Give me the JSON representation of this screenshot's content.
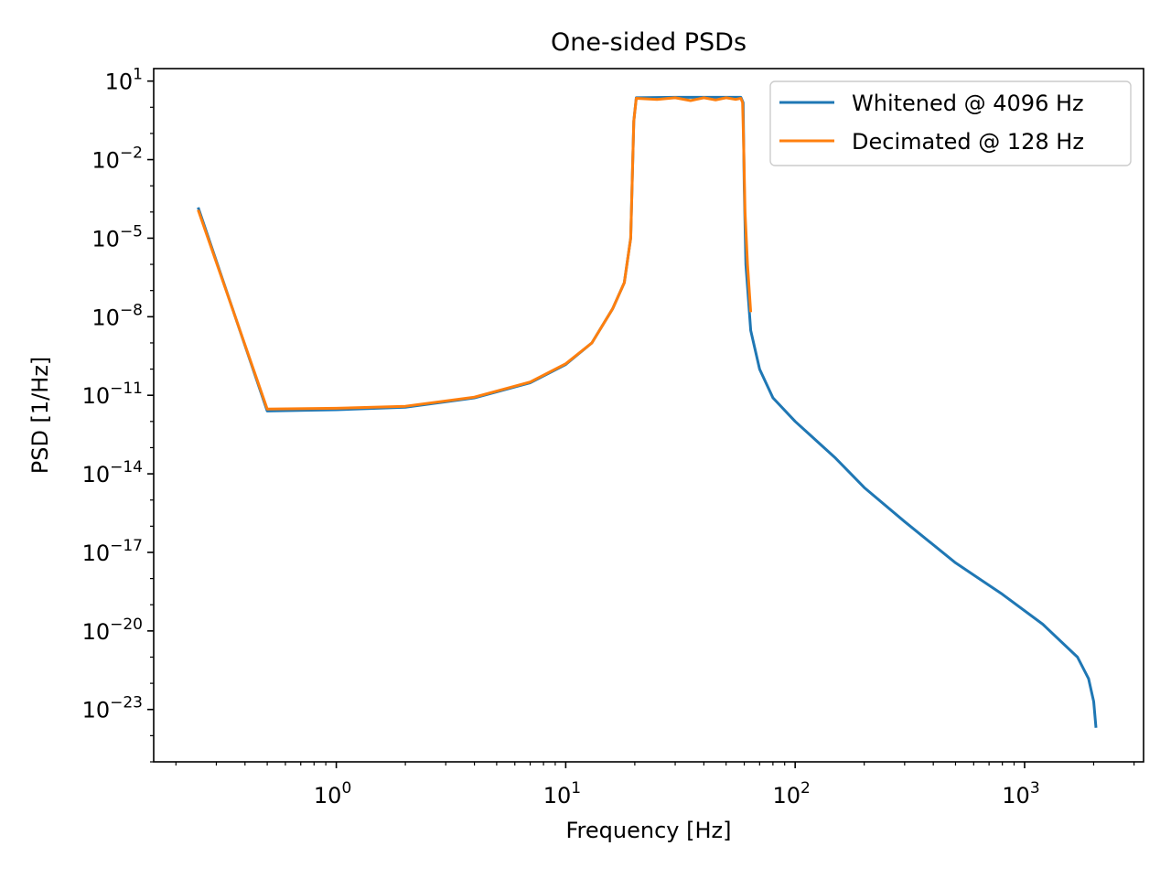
{
  "chart_data": {
    "type": "line",
    "title": "One-sided PSDs",
    "xlabel": "Frequency [Hz]",
    "ylabel": "PSD [1/Hz]",
    "xscale": "log",
    "yscale": "log",
    "xlim": [
      0.16,
      3300
    ],
    "ylim": [
      1e-25,
      30
    ],
    "grid": false,
    "legend_position": "top-right",
    "x_ticks": [
      {
        "value": 1,
        "base": "10",
        "exp": "0"
      },
      {
        "value": 10,
        "base": "10",
        "exp": "1"
      },
      {
        "value": 100,
        "base": "10",
        "exp": "2"
      },
      {
        "value": 1000,
        "base": "10",
        "exp": "3"
      }
    ],
    "y_ticks": [
      {
        "value": 10,
        "base": "10",
        "exp": "1"
      },
      {
        "value": 0.01,
        "base": "10",
        "exp": "−2"
      },
      {
        "value": 1e-05,
        "base": "10",
        "exp": "−5"
      },
      {
        "value": 1e-08,
        "base": "10",
        "exp": "−8"
      },
      {
        "value": 1e-11,
        "base": "10",
        "exp": "−11"
      },
      {
        "value": 1e-14,
        "base": "10",
        "exp": "−14"
      },
      {
        "value": 1e-17,
        "base": "10",
        "exp": "−17"
      },
      {
        "value": 1e-20,
        "base": "10",
        "exp": "−20"
      },
      {
        "value": 1e-23,
        "base": "10",
        "exp": "−23"
      }
    ],
    "series": [
      {
        "name": "Whitened @ 4096 Hz",
        "color": "#1f77b4",
        "points": [
          [
            0.25,
            0.00015
          ],
          [
            0.5,
            2.5e-12
          ],
          [
            1,
            2.8e-12
          ],
          [
            2,
            3.5e-12
          ],
          [
            4,
            8e-12
          ],
          [
            7,
            3e-11
          ],
          [
            10,
            1.5e-10
          ],
          [
            13,
            1e-09
          ],
          [
            16,
            2e-08
          ],
          [
            18,
            2e-07
          ],
          [
            19.2,
            1e-05
          ],
          [
            19.8,
            0.3
          ],
          [
            20.3,
            2.3
          ],
          [
            30,
            2.4
          ],
          [
            45,
            2.4
          ],
          [
            58,
            2.4
          ],
          [
            59.3,
            1.5
          ],
          [
            60,
            0.001
          ],
          [
            61,
            1e-06
          ],
          [
            64,
            3e-09
          ],
          [
            70,
            1e-10
          ],
          [
            80,
            8e-12
          ],
          [
            100,
            1e-12
          ],
          [
            150,
            4e-14
          ],
          [
            200,
            3e-15
          ],
          [
            300,
            1.5e-16
          ],
          [
            500,
            4e-18
          ],
          [
            800,
            2.5e-19
          ],
          [
            1200,
            1.8e-20
          ],
          [
            1700,
            1e-21
          ],
          [
            1900,
            1.5e-22
          ],
          [
            2000,
            2e-23
          ],
          [
            2048,
            2e-24
          ]
        ]
      },
      {
        "name": "Decimated @ 128 Hz",
        "color": "#ff7f0e",
        "points": [
          [
            0.25,
            0.00012
          ],
          [
            0.5,
            3e-12
          ],
          [
            1,
            3.2e-12
          ],
          [
            2,
            3.8e-12
          ],
          [
            4,
            8.5e-12
          ],
          [
            7,
            3.2e-11
          ],
          [
            10,
            1.6e-10
          ],
          [
            13,
            1e-09
          ],
          [
            16,
            2e-08
          ],
          [
            18,
            2e-07
          ],
          [
            19.2,
            1e-05
          ],
          [
            19.8,
            0.3
          ],
          [
            20.3,
            2.2
          ],
          [
            25,
            2.0
          ],
          [
            30,
            2.3
          ],
          [
            35,
            1.8
          ],
          [
            40,
            2.3
          ],
          [
            45,
            1.9
          ],
          [
            50,
            2.3
          ],
          [
            55,
            2.0
          ],
          [
            58,
            2.2
          ],
          [
            59,
            1.5
          ],
          [
            59.6,
            0.05
          ],
          [
            60.5,
            0.0001
          ],
          [
            62,
            1e-06
          ],
          [
            64,
            1.5e-08
          ]
        ]
      }
    ]
  }
}
